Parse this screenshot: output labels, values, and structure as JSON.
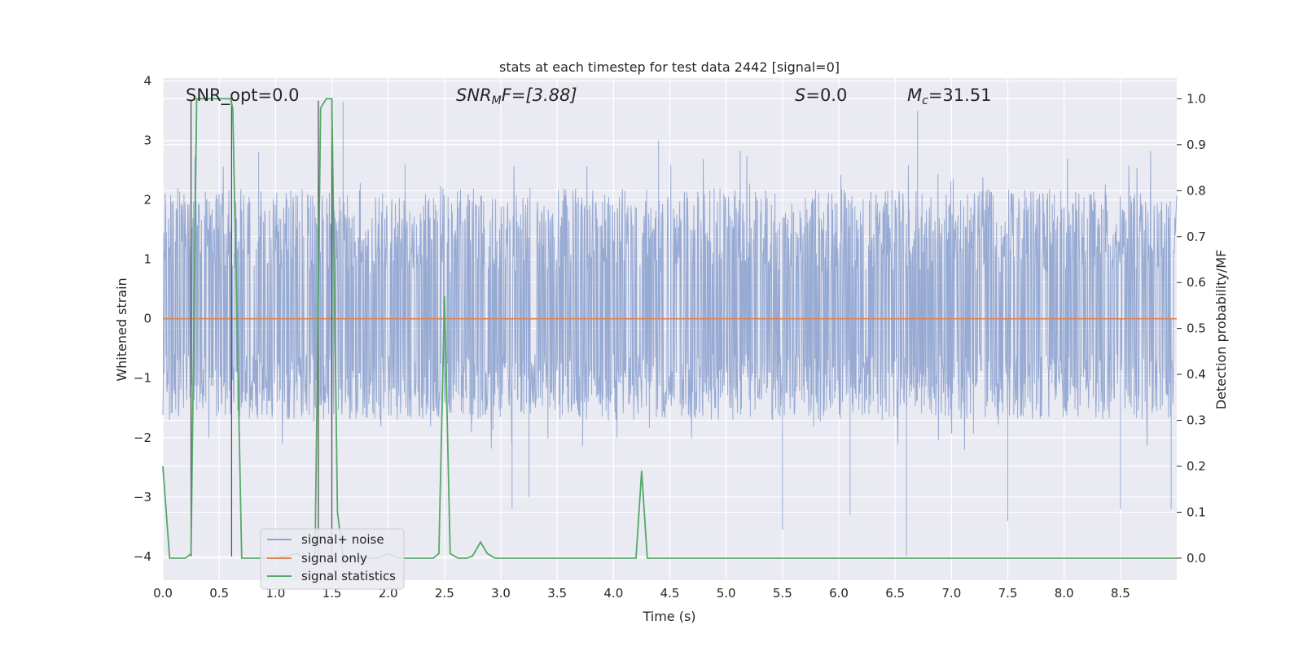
{
  "chart_data": {
    "type": "line",
    "title": "stats at each timestep for test data 2442 [signal=0]",
    "xlabel": "Time (s)",
    "ylabel": "Whitened strain",
    "ylabel_right": "Detection probability/MF",
    "xlim": [
      0.0,
      9.0
    ],
    "ylim": [
      -4.4,
      4.05
    ],
    "ylim_right": [
      -0.048,
      1.045
    ],
    "x_ticks": [
      0.0,
      0.5,
      1.0,
      1.5,
      2.0,
      2.5,
      3.0,
      3.5,
      4.0,
      4.5,
      5.0,
      5.5,
      6.0,
      6.5,
      7.0,
      7.5,
      8.0,
      8.5
    ],
    "x_tick_labels": [
      "0.0",
      "0.5",
      "1.0",
      "1.5",
      "2.0",
      "2.5",
      "3.0",
      "3.5",
      "4.0",
      "4.5",
      "5.0",
      "5.5",
      "6.0",
      "6.5",
      "7.0",
      "7.5",
      "8.0",
      "8.5"
    ],
    "y_ticks": [
      4,
      3,
      2,
      1,
      0,
      -1,
      -2,
      -3,
      -4
    ],
    "y_tick_labels": [
      "4",
      "3",
      "2",
      "1",
      "0",
      "−1",
      "−2",
      "−3",
      "−4"
    ],
    "y_right_ticks": [
      1.0,
      0.9,
      0.8,
      0.7,
      0.6,
      0.5,
      0.4,
      0.3,
      0.2,
      0.1,
      0.0
    ],
    "y_right_tick_labels": [
      "1.0",
      "0.9",
      "0.8",
      "0.7",
      "0.6",
      "0.5",
      "0.4",
      "0.3",
      "0.2",
      "0.1",
      "0.0"
    ],
    "grid": true,
    "legend_position": "lower-left",
    "annotations": {
      "snr_opt": "SNR_opt=0.0",
      "snr_mf_var": "SNR",
      "snr_mf_sub": "M",
      "snr_mf_rest": "F=[3.88]",
      "s_var": "S",
      "s_rest": "=0.0",
      "mc_var": "M",
      "mc_sub": "c",
      "mc_rest": "=31.51"
    },
    "series": [
      {
        "name": "signal+ noise",
        "axis": "left",
        "color": "#92a6d1",
        "description_values": {
          "typical_envelope": [
            -1.7,
            2.2
          ],
          "peak_points": [
            [
              0.25,
              -2.1
            ],
            [
              0.85,
              2.8
            ],
            [
              1.6,
              3.65
            ],
            [
              2.15,
              2.6
            ],
            [
              3.1,
              -3.2
            ],
            [
              3.25,
              -3.0
            ],
            [
              4.4,
              3.0
            ],
            [
              5.5,
              -3.55
            ],
            [
              6.1,
              -3.3
            ],
            [
              6.6,
              -4.0
            ],
            [
              6.7,
              3.5
            ],
            [
              7.5,
              -3.4
            ],
            [
              8.5,
              -3.2
            ],
            [
              8.95,
              -3.2
            ]
          ]
        }
      },
      {
        "name": "signal only",
        "axis": "left",
        "color": "#dd8452",
        "x": [
          0.0,
          9.0
        ],
        "y": [
          0.0,
          0.0
        ]
      },
      {
        "name": "signal statistics",
        "axis": "right",
        "color": "#55a868",
        "x": [
          0.0,
          0.06,
          0.2,
          0.25,
          0.3,
          0.6,
          0.62,
          0.7,
          1.0,
          1.2,
          1.25,
          1.35,
          1.4,
          1.45,
          1.5,
          1.55,
          1.6,
          1.9,
          2.0,
          2.1,
          2.4,
          2.45,
          2.5,
          2.55,
          2.62,
          2.7,
          2.75,
          2.82,
          2.88,
          2.95,
          3.0,
          3.5,
          4.0,
          4.2,
          4.25,
          4.3,
          4.35,
          4.5,
          5.0,
          6.0,
          7.0,
          8.0,
          9.0
        ],
        "y": [
          0.2,
          0.0,
          0.0,
          0.01,
          1.0,
          1.0,
          0.98,
          0.0,
          0.0,
          0.01,
          0.0,
          0.0,
          0.98,
          1.0,
          1.0,
          0.1,
          0.0,
          0.0,
          0.01,
          0.0,
          0.0,
          0.01,
          0.57,
          0.01,
          0.0,
          0.0,
          0.005,
          0.035,
          0.01,
          0.0,
          0.0,
          0.0,
          0.0,
          0.0,
          0.19,
          0.0,
          0.0,
          0.0,
          0.0,
          0.0,
          0.0,
          0.0,
          0.0
        ]
      }
    ],
    "vertical_markers": {
      "color": "#555555",
      "lines": [
        [
          0.25,
          3.67,
          -4.0
        ],
        [
          0.61,
          3.67,
          -4.0
        ],
        [
          1.38,
          3.67,
          -4.0
        ],
        [
          1.5,
          3.67,
          -4.0
        ]
      ]
    }
  }
}
